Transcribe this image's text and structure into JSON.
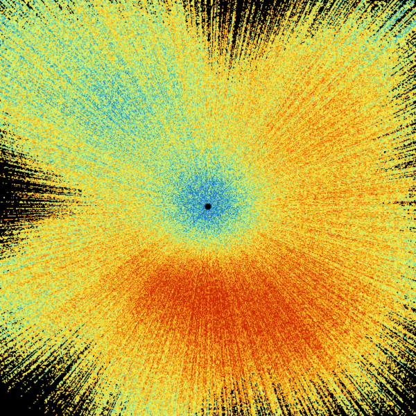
{
  "radar_image": {
    "background_color": "#000000",
    "center_marker_color": "#000000",
    "colormap": [
      "#1a5fd0",
      "#22a4c8",
      "#7fd8a0",
      "#d8f878",
      "#f8e030",
      "#f4b018",
      "#ec6a10",
      "#c82800"
    ]
  }
}
